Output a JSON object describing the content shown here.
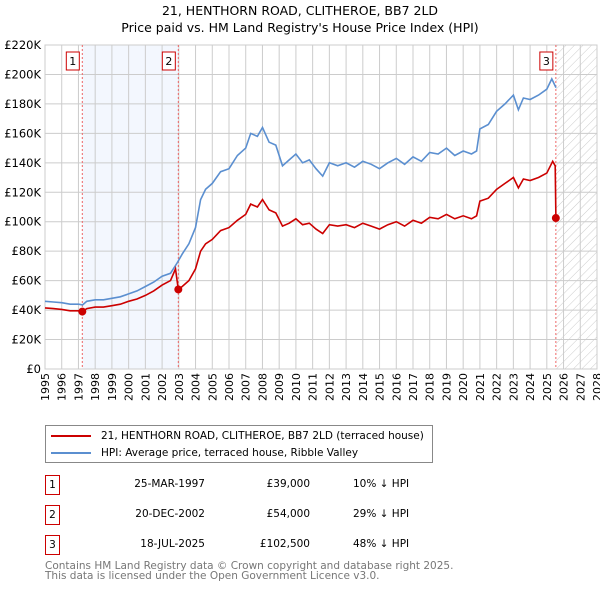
{
  "chart_data": {
    "type": "line",
    "title": "21, HENTHORN ROAD, CLITHEROE, BB7 2LD",
    "subtitle": "Price paid vs. HM Land Registry's House Price Index (HPI)",
    "xlim": [
      1995,
      2028
    ],
    "ylim": [
      0,
      220000
    ],
    "grid": true,
    "y_ticks": [
      0,
      20000,
      40000,
      60000,
      80000,
      100000,
      120000,
      140000,
      160000,
      180000,
      200000,
      220000
    ],
    "y_tick_labels": [
      "£0",
      "£20K",
      "£40K",
      "£60K",
      "£80K",
      "£100K",
      "£120K",
      "£140K",
      "£160K",
      "£180K",
      "£200K",
      "£220K"
    ],
    "x_tick_labels": [
      "1995",
      "1996",
      "1997",
      "1998",
      "1999",
      "2000",
      "2001",
      "2002",
      "2003",
      "2004",
      "2005",
      "2006",
      "2007",
      "2008",
      "2009",
      "2010",
      "2011",
      "2012",
      "2013",
      "2014",
      "2015",
      "2016",
      "2017",
      "2018",
      "2019",
      "2020",
      "2021",
      "2022",
      "2023",
      "2024",
      "2025",
      "2026",
      "2027",
      "2028"
    ],
    "series": [
      {
        "name": "21, HENTHORN ROAD, CLITHEROE, BB7 2LD (terraced house)",
        "color": "#cc0000",
        "x": [
          1995,
          1995.5,
          1996,
          1996.5,
          1997,
          1997.23,
          1997.5,
          1998,
          1998.5,
          1999,
          1999.5,
          2000,
          2000.5,
          2001,
          2001.5,
          2002,
          2002.5,
          2002.8,
          2002.97,
          2003.2,
          2003.6,
          2004,
          2004.3,
          2004.6,
          2005,
          2005.5,
          2006,
          2006.5,
          2007,
          2007.3,
          2007.7,
          2008,
          2008.4,
          2008.8,
          2009.2,
          2009.6,
          2010,
          2010.4,
          2010.8,
          2011.2,
          2011.6,
          2012,
          2012.5,
          2013,
          2013.5,
          2014,
          2014.5,
          2015,
          2015.5,
          2016,
          2016.5,
          2017,
          2017.5,
          2018,
          2018.5,
          2019,
          2019.5,
          2020,
          2020.5,
          2020.8,
          2021,
          2021.5,
          2022,
          2022.5,
          2023,
          2023.3,
          2023.6,
          2024,
          2024.5,
          2025,
          2025.35,
          2025.5,
          2025.54
        ],
        "values": [
          41500,
          41000,
          40500,
          39500,
          39500,
          39000,
          41000,
          42000,
          42000,
          43000,
          44000,
          46000,
          47500,
          50000,
          53000,
          57000,
          60000,
          68000,
          54000,
          56000,
          60000,
          68000,
          80000,
          85000,
          88000,
          94000,
          96000,
          101000,
          105000,
          112000,
          110000,
          115000,
          108000,
          106000,
          97000,
          99000,
          102000,
          98000,
          99000,
          95000,
          92000,
          98000,
          97000,
          98000,
          96000,
          99000,
          97000,
          95000,
          98000,
          100000,
          97000,
          101000,
          99000,
          103000,
          102000,
          105000,
          102000,
          104000,
          102000,
          104000,
          114000,
          116000,
          122000,
          126000,
          130000,
          123000,
          129000,
          128000,
          130000,
          133000,
          141000,
          138000,
          102500
        ]
      },
      {
        "name": "HPI: Average price, terraced house, Ribble Valley",
        "color": "#5b8fd0",
        "x": [
          1995,
          1995.5,
          1996,
          1996.5,
          1997,
          1997.25,
          1997.5,
          1998,
          1998.5,
          1999,
          1999.5,
          2000,
          2000.5,
          2001,
          2001.5,
          2002,
          2002.5,
          2002.9,
          2003.2,
          2003.6,
          2004,
          2004.3,
          2004.6,
          2005,
          2005.5,
          2006,
          2006.5,
          2007,
          2007.3,
          2007.7,
          2008,
          2008.4,
          2008.8,
          2009.2,
          2009.6,
          2010,
          2010.4,
          2010.8,
          2011.2,
          2011.6,
          2012,
          2012.5,
          2013,
          2013.5,
          2014,
          2014.5,
          2015,
          2015.5,
          2016,
          2016.5,
          2017,
          2017.5,
          2018,
          2018.5,
          2019,
          2019.5,
          2020,
          2020.5,
          2020.8,
          2021,
          2021.5,
          2022,
          2022.5,
          2023,
          2023.3,
          2023.6,
          2024,
          2024.5,
          2025,
          2025.3,
          2025.55
        ],
        "values": [
          46000,
          45500,
          45000,
          44000,
          44000,
          43500,
          46000,
          47000,
          47000,
          48000,
          49000,
          51000,
          53000,
          56000,
          59000,
          63000,
          65000,
          72000,
          78000,
          85000,
          96000,
          115000,
          122000,
          126000,
          134000,
          136000,
          145000,
          150000,
          160000,
          158000,
          164000,
          154000,
          152000,
          138000,
          142000,
          146000,
          140000,
          142000,
          136000,
          131000,
          140000,
          138000,
          140000,
          137000,
          141000,
          139000,
          136000,
          140000,
          143000,
          139000,
          144000,
          141000,
          147000,
          146000,
          150000,
          145000,
          148000,
          146000,
          148000,
          163000,
          166000,
          175000,
          180000,
          186000,
          176000,
          184000,
          183000,
          186000,
          190000,
          197000,
          191000
        ]
      }
    ],
    "sales": [
      {
        "label": "1",
        "x": 1997.23,
        "value": 39000,
        "date": "25-MAR-1997",
        "price": "£39,000",
        "hpi": "10% ↓ HPI"
      },
      {
        "label": "2",
        "x": 2002.97,
        "value": 54000,
        "date": "20-DEC-2002",
        "price": "£54,000",
        "hpi": "29% ↓ HPI"
      },
      {
        "label": "3",
        "x": 2025.54,
        "value": 102500,
        "date": "18-JUL-2025",
        "price": "£102,500",
        "hpi": "48% ↓ HPI"
      }
    ],
    "shaded_range": [
      1997.23,
      2002.97
    ],
    "hatched_from": 2025.54,
    "legend_position": "below"
  },
  "footer": {
    "line1": "Contains HM Land Registry data © Crown copyright and database right 2025.",
    "line2": "This data is licensed under the Open Government Licence v3.0."
  }
}
